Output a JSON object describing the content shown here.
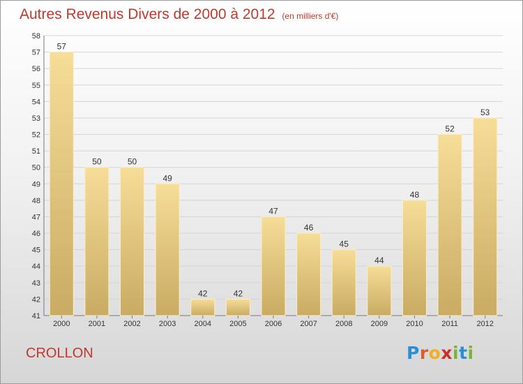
{
  "header": {
    "title": "Autres Revenus Divers de 2000 à 2012",
    "subtitle": "(en milliers d'€)"
  },
  "footer": {
    "location": "CROLLON",
    "logo_text": "Proxiti",
    "logo_colors": [
      "#2a8fd6",
      "#e05a2b",
      "#f2b01e",
      "#c9302c",
      "#7ab33a",
      "#2a8fd6",
      "#7ab33a"
    ]
  },
  "colors": {
    "title": "#c0392b",
    "bar_light": "#f6dd98",
    "bar_dark": "#c9ab63",
    "grid": "#d4d4d4",
    "axis_text": "#333333"
  },
  "chart_data": {
    "type": "bar",
    "categories": [
      "2000",
      "2001",
      "2002",
      "2003",
      "2004",
      "2005",
      "2006",
      "2007",
      "2008",
      "2009",
      "2010",
      "2011",
      "2012"
    ],
    "values": [
      57,
      50,
      50,
      49,
      42,
      42,
      47,
      46,
      45,
      44,
      48,
      52,
      53
    ],
    "title": "Autres Revenus Divers de 2000 à 2012",
    "subtitle": "(en milliers d'€)",
    "xlabel": "",
    "ylabel": "",
    "ylim": [
      41,
      58
    ],
    "yticks": [
      41,
      42,
      43,
      44,
      45,
      46,
      47,
      48,
      49,
      50,
      51,
      52,
      53,
      54,
      55,
      56,
      57,
      58
    ],
    "grid": true,
    "data_labels": true
  }
}
